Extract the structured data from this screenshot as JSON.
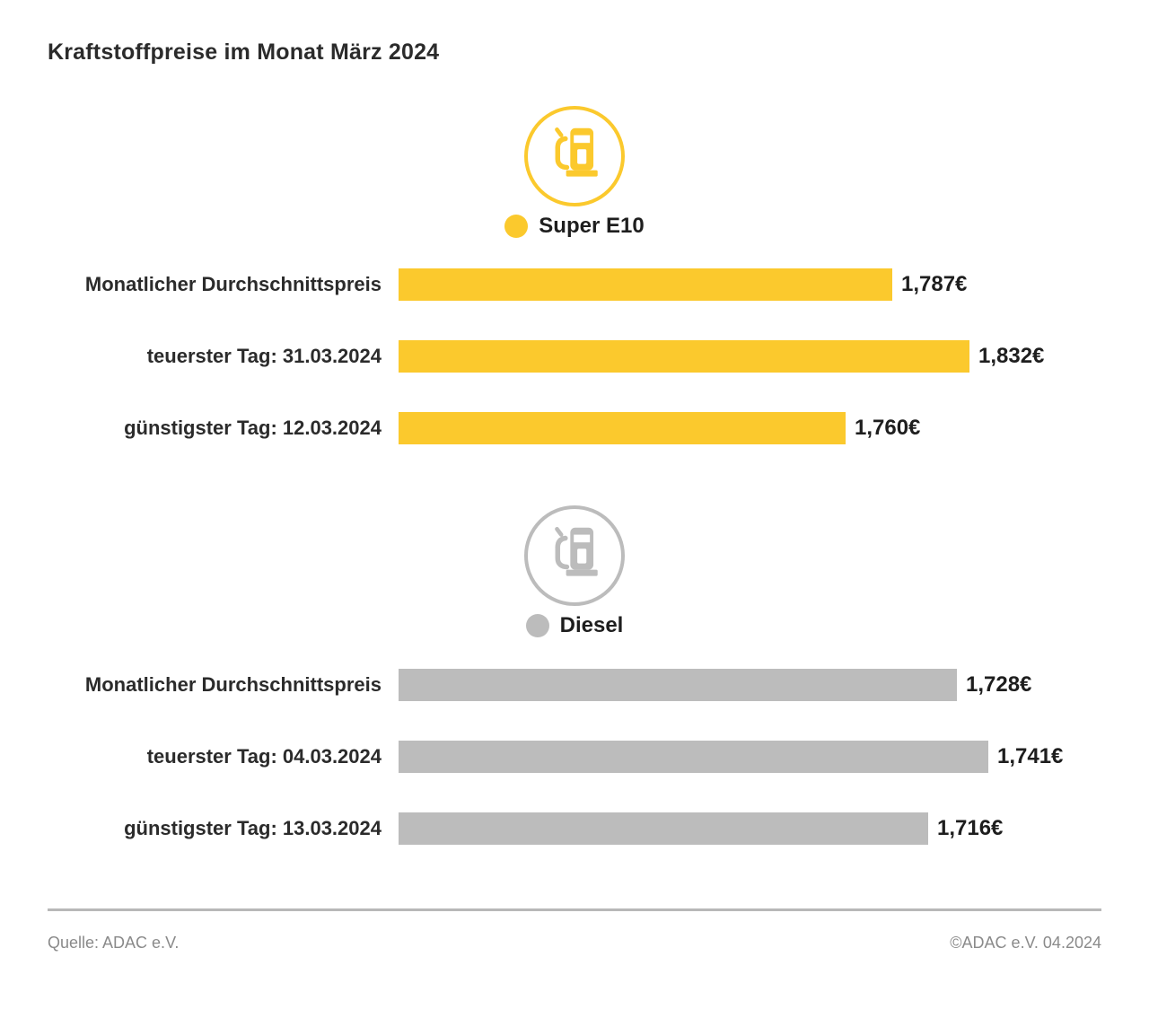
{
  "page": {
    "title": "Kraftstoffpreise im Monat März 2024"
  },
  "colors": {
    "super_e10": "#FBC92D",
    "diesel": "#BCBCBC",
    "text": "#2B2B2B",
    "footer_text": "#8A8A8A",
    "rule": "#B8B8B8"
  },
  "footer": {
    "source": "Quelle: ADAC e.V.",
    "copyright": "©ADAC e.V. 04.2024"
  },
  "chart_data": [
    {
      "type": "bar",
      "title": "Super E10",
      "icon": "fuel-pump-icon",
      "color": "#FBC92D",
      "categories": [
        "Monatlicher Durchschnittspreis",
        "teuerster Tag: 31.03.2024",
        "günstigster Tag: 12.03.2024"
      ],
      "values": [
        1.787,
        1.832,
        1.76
      ],
      "value_labels": [
        "1,787€",
        "1,832€",
        "1,760€"
      ],
      "xlim": [
        1.5,
        1.847
      ],
      "legend_position": "top-center"
    },
    {
      "type": "bar",
      "title": "Diesel",
      "icon": "fuel-pump-icon",
      "color": "#BCBCBC",
      "categories": [
        "Monatlicher Durchschnittspreis",
        "teuerster Tag: 04.03.2024",
        "günstigster Tag: 13.03.2024"
      ],
      "values": [
        1.728,
        1.741,
        1.716
      ],
      "value_labels": [
        "1,728€",
        "1,741€",
        "1,716€"
      ],
      "xlim": [
        1.496,
        1.744
      ],
      "legend_position": "top-center"
    }
  ]
}
